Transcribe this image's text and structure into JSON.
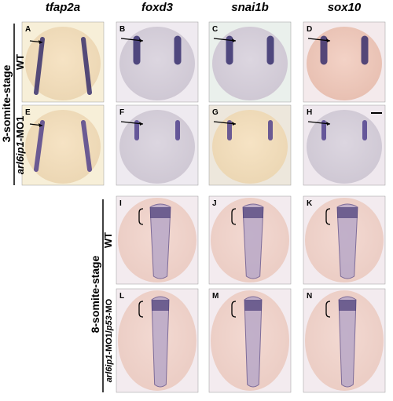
{
  "column_headers": [
    "tfap2a",
    "foxd3",
    "snai1b",
    "sox10"
  ],
  "stage_labels": [
    "3-somite-stage",
    "8-somite-stage"
  ],
  "row_labels": [
    {
      "parts": [
        {
          "text": "WT",
          "italic": false
        }
      ]
    },
    {
      "parts": [
        {
          "text": "arl6ip1",
          "italic": true
        },
        {
          "text": "-MO1",
          "italic": false
        }
      ]
    },
    {
      "parts": [
        {
          "text": "WT",
          "italic": false
        }
      ]
    },
    {
      "parts": [
        {
          "text": "arl6ip1",
          "italic": true
        },
        {
          "text": "-MO1/",
          "italic": false
        },
        {
          "text": "p53",
          "italic": true
        },
        {
          "text": "-MO",
          "italic": false
        }
      ]
    }
  ],
  "panels": {
    "top": [
      [
        "A",
        "B",
        "C",
        "D"
      ],
      [
        "E",
        "F",
        "G",
        "H"
      ]
    ],
    "bottom": [
      [
        "I",
        "J",
        "K"
      ],
      [
        "L",
        "M",
        "N"
      ]
    ]
  }
}
